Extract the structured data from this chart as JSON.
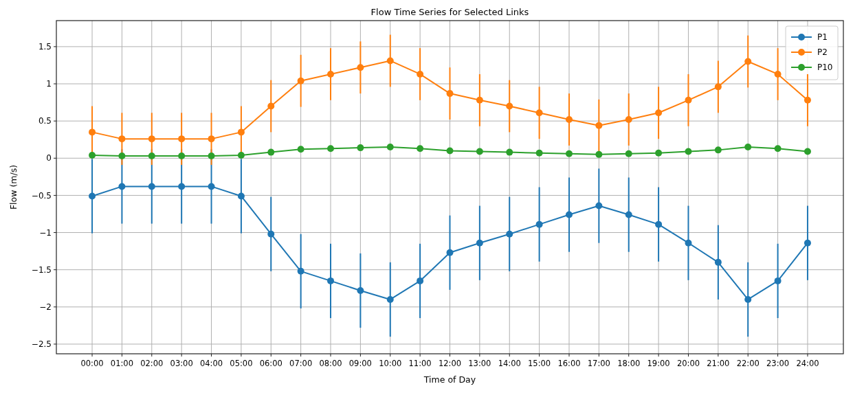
{
  "chart_data": {
    "type": "line",
    "title": "Flow Time Series for Selected Links",
    "xlabel": "Time of Day",
    "ylabel": "Flow (m/s)",
    "categories": [
      "00:00",
      "01:00",
      "02:00",
      "03:00",
      "04:00",
      "05:00",
      "06:00",
      "07:00",
      "08:00",
      "09:00",
      "10:00",
      "11:00",
      "12:00",
      "13:00",
      "14:00",
      "15:00",
      "16:00",
      "17:00",
      "18:00",
      "19:00",
      "20:00",
      "21:00",
      "22:00",
      "23:00",
      "24:00"
    ],
    "series": [
      {
        "name": "P1",
        "color": "#1f77b4",
        "values": [
          -0.51,
          -0.38,
          -0.38,
          -0.38,
          -0.38,
          -0.51,
          -1.02,
          -1.52,
          -1.65,
          -1.78,
          -1.9,
          -1.65,
          -1.27,
          -1.14,
          -1.02,
          -0.89,
          -0.76,
          -0.64,
          -0.76,
          -0.89,
          -1.14,
          -1.4,
          -1.9,
          -1.65,
          -1.14
        ],
        "errors": [
          0.5,
          0.5,
          0.5,
          0.5,
          0.5,
          0.5,
          0.5,
          0.5,
          0.5,
          0.5,
          0.5,
          0.5,
          0.5,
          0.5,
          0.5,
          0.5,
          0.5,
          0.5,
          0.5,
          0.5,
          0.5,
          0.5,
          0.5,
          0.5,
          0.5
        ]
      },
      {
        "name": "P2",
        "color": "#ff7f0e",
        "values": [
          0.35,
          0.26,
          0.26,
          0.26,
          0.26,
          0.35,
          0.7,
          1.04,
          1.13,
          1.22,
          1.31,
          1.13,
          0.87,
          0.78,
          0.7,
          0.61,
          0.52,
          0.44,
          0.52,
          0.61,
          0.78,
          0.96,
          1.3,
          1.13,
          0.78
        ],
        "errors": [
          0.35,
          0.35,
          0.35,
          0.35,
          0.35,
          0.35,
          0.35,
          0.35,
          0.35,
          0.35,
          0.35,
          0.35,
          0.35,
          0.35,
          0.35,
          0.35,
          0.35,
          0.35,
          0.35,
          0.35,
          0.35,
          0.35,
          0.35,
          0.35,
          0.35
        ]
      },
      {
        "name": "P10",
        "color": "#2ca02c",
        "values": [
          0.04,
          0.03,
          0.03,
          0.03,
          0.03,
          0.04,
          0.08,
          0.12,
          0.13,
          0.14,
          0.15,
          0.13,
          0.1,
          0.09,
          0.08,
          0.07,
          0.06,
          0.05,
          0.06,
          0.07,
          0.09,
          0.11,
          0.15,
          0.13,
          0.09
        ]
      }
    ],
    "ylim": [
      -2.63,
      1.85
    ],
    "yticks": [
      -2.5,
      -2,
      -1.5,
      -1,
      -0.5,
      0,
      0.5,
      1,
      1.5
    ],
    "grid": true,
    "legend": "top right",
    "marker": "circle",
    "line_style": "solid"
  }
}
